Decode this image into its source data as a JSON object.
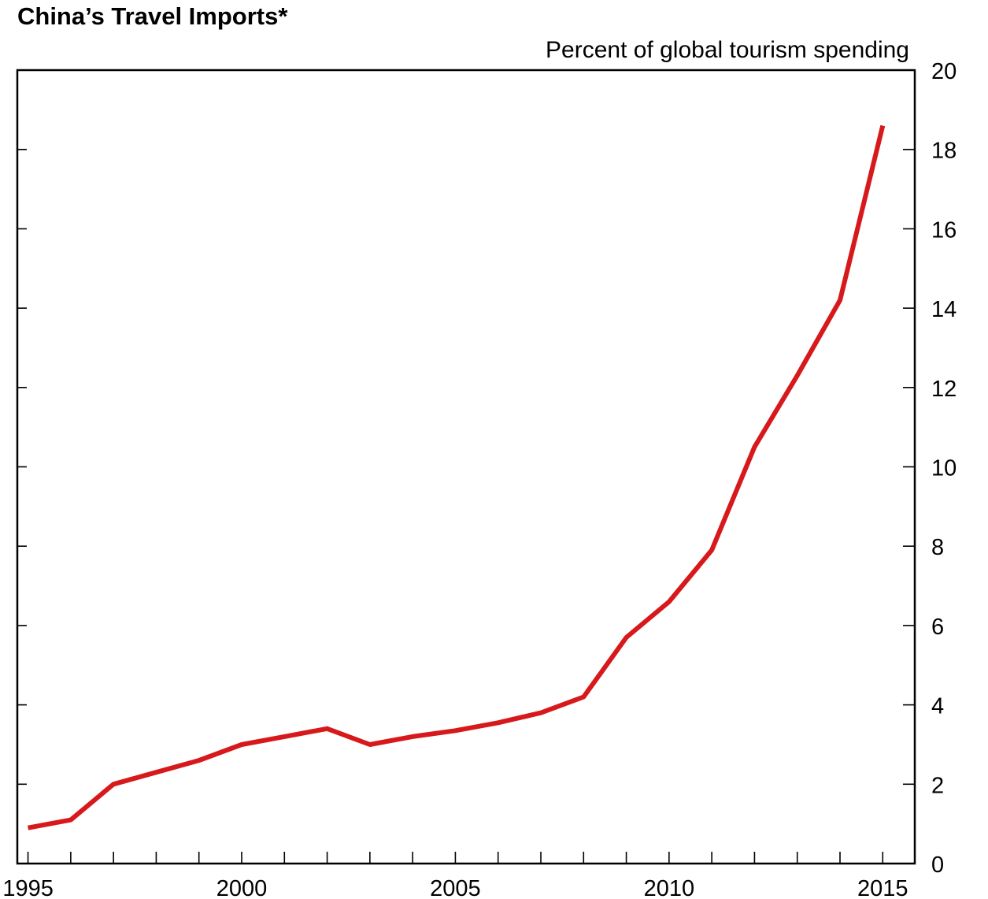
{
  "chart_data": {
    "type": "line",
    "title": "China’s Travel Imports*",
    "subtitle": "Percent of global tourism spending",
    "xlabel": "",
    "ylabel": "",
    "x_ticks": [
      "1995",
      "2000",
      "2005",
      "2010",
      "2015"
    ],
    "y_ticks": [
      "0",
      "2",
      "4",
      "6",
      "8",
      "10",
      "12",
      "14",
      "16",
      "18",
      "20"
    ],
    "xlim": [
      1994.75,
      2015.75
    ],
    "ylim": [
      0,
      20
    ],
    "y_axis_side": "right",
    "grid": false,
    "legend": "none",
    "series": [
      {
        "color": "#d7191c",
        "x": [
          1995,
          1996,
          1997,
          1998,
          1999,
          2000,
          2001,
          2002,
          2003,
          2004,
          2005,
          2006,
          2007,
          2008,
          2009,
          2010,
          2011,
          2012,
          2013,
          2014,
          2015
        ],
        "values": [
          0.9,
          1.1,
          2.0,
          2.3,
          2.6,
          3.0,
          3.2,
          3.4,
          3.0,
          3.2,
          3.35,
          3.55,
          3.8,
          4.2,
          5.7,
          6.6,
          7.9,
          10.5,
          12.3,
          14.2,
          18.6
        ]
      }
    ]
  }
}
